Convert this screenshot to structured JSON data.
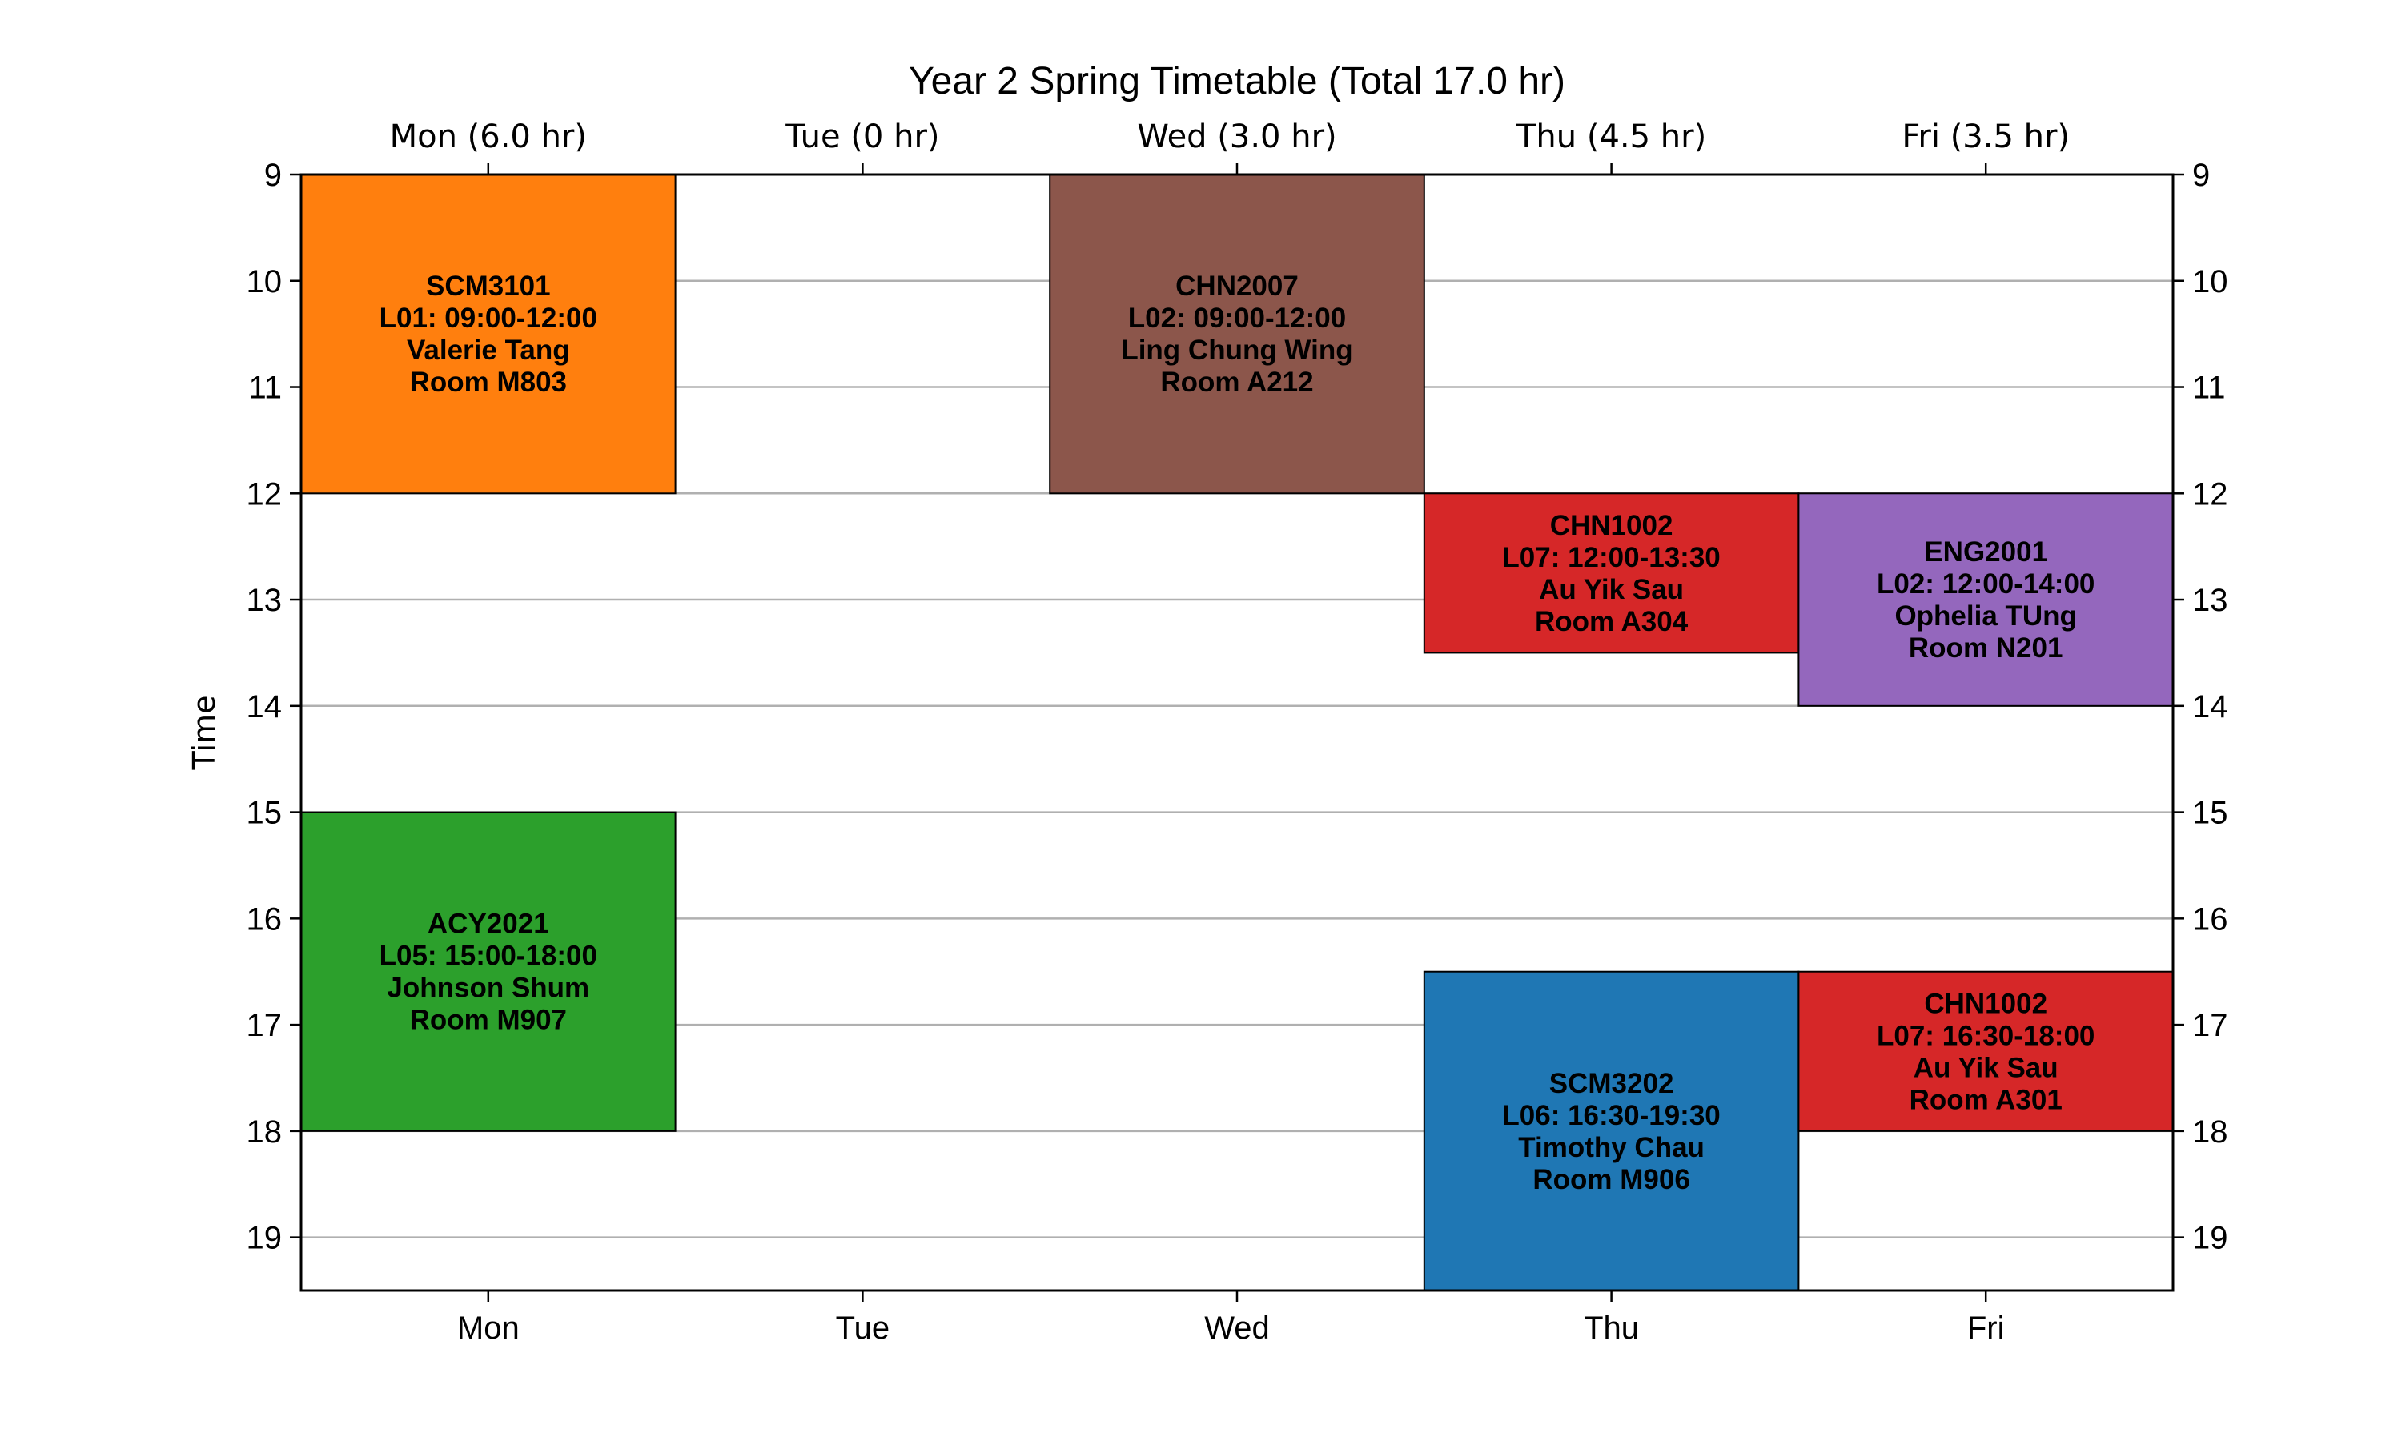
{
  "chart_data": {
    "type": "timetable",
    "title": "Year 2 Spring Timetable (Total 17.0 hr)",
    "ylabel": "Time",
    "ylim": [
      9,
      19.5
    ],
    "yticks": [
      9,
      10,
      11,
      12,
      13,
      14,
      15,
      16,
      17,
      18,
      19
    ],
    "categories": [
      "Mon",
      "Tue",
      "Wed",
      "Thu",
      "Fri"
    ],
    "top_labels": [
      "Mon (6.0 hr)",
      "Tue (0 hr)",
      "Wed (3.0 hr)",
      "Thu (4.5 hr)",
      "Fri (3.5 hr)"
    ],
    "grid": "horizontal",
    "events": [
      {
        "day": "Mon",
        "start": 9,
        "end": 12,
        "color": "#ff7f0e",
        "lines": [
          "SCM3101",
          "L01: 09:00-12:00",
          "Valerie Tang",
          "Room M803"
        ]
      },
      {
        "day": "Mon",
        "start": 15,
        "end": 18,
        "color": "#2ca02c",
        "lines": [
          "ACY2021",
          "L05: 15:00-18:00",
          "Johnson Shum",
          "Room M907"
        ]
      },
      {
        "day": "Wed",
        "start": 9,
        "end": 12,
        "color": "#8c564b",
        "lines": [
          "CHN2007",
          "L02: 09:00-12:00",
          "Ling Chung Wing",
          "Room A212"
        ]
      },
      {
        "day": "Thu",
        "start": 12,
        "end": 13.5,
        "color": "#d62728",
        "lines": [
          "CHN1002",
          "L07: 12:00-13:30",
          "Au Yik Sau",
          "Room A304"
        ]
      },
      {
        "day": "Thu",
        "start": 16.5,
        "end": 19.5,
        "color": "#1f77b4",
        "lines": [
          "SCM3202",
          "L06: 16:30-19:30",
          "Timothy Chau",
          "Room M906"
        ]
      },
      {
        "day": "Fri",
        "start": 12,
        "end": 14,
        "color": "#9467bd",
        "lines": [
          "ENG2001",
          "L02: 12:00-14:00",
          "Ophelia TUng",
          "Room N201"
        ]
      },
      {
        "day": "Fri",
        "start": 16.5,
        "end": 18,
        "color": "#d62728",
        "lines": [
          "CHN1002",
          "L07: 16:30-18:00",
          "Au Yik Sau",
          "Room A301"
        ]
      }
    ]
  }
}
